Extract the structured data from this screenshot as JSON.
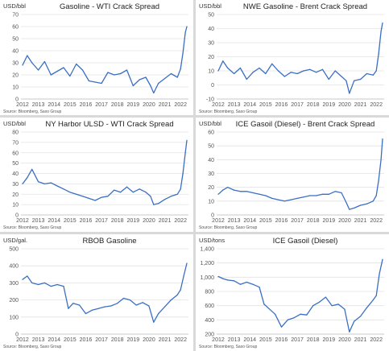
{
  "source_text": "Source: Bloomberg, Saxo Group",
  "colors": {
    "line": "#3a6fc4",
    "grid": "#e2e2e2",
    "axis": "#bfbfbf",
    "text": "#333333",
    "tick": "#555555"
  },
  "chart_data": [
    {
      "type": "line",
      "title": "Gasoline - WTI Crack Spread",
      "ylabel": "USD/bbl",
      "ylim": [
        0,
        70
      ],
      "yticks": [
        0,
        10,
        20,
        30,
        40,
        50,
        60,
        70
      ],
      "ytick_labels": [
        "0",
        "10",
        "20",
        "30",
        "40",
        "50",
        "60",
        "70"
      ],
      "xlim": [
        2011.9,
        2022.5
      ],
      "xticks": [
        2012,
        2013,
        2014,
        2015,
        2016,
        2017,
        2018,
        2019,
        2020,
        2021,
        2022
      ],
      "source": "Source: Bloomberg, Saxo Group",
      "series": [
        {
          "x": [
            2012.0,
            2012.3,
            2012.6,
            2013.0,
            2013.4,
            2013.8,
            2014.2,
            2014.6,
            2015.0,
            2015.4,
            2015.8,
            2016.2,
            2016.6,
            2017.0,
            2017.4,
            2017.8,
            2018.2,
            2018.6,
            2019.0,
            2019.4,
            2019.8,
            2020.1,
            2020.3,
            2020.6,
            2021.0,
            2021.4,
            2021.8,
            2022.0,
            2022.15,
            2022.3,
            2022.4
          ],
          "y": [
            28,
            36,
            30,
            24,
            31,
            20,
            23,
            26,
            19,
            29,
            24,
            15,
            14,
            13,
            22,
            20,
            21,
            24,
            11,
            16,
            18,
            11,
            5,
            13,
            17,
            21,
            18,
            25,
            38,
            55,
            60
          ]
        }
      ]
    },
    {
      "type": "line",
      "title": "NWE Gasoline - Brent Crack Spread",
      "ylabel": "USD/bbl",
      "ylim": [
        -10,
        50
      ],
      "yticks": [
        -10,
        0,
        10,
        20,
        30,
        40,
        50
      ],
      "ytick_labels": [
        "-10",
        "0",
        "10",
        "20",
        "30",
        "40",
        "50"
      ],
      "xlim": [
        2011.9,
        2022.5
      ],
      "xticks": [
        2012,
        2013,
        2014,
        2015,
        2016,
        2017,
        2018,
        2019,
        2020,
        2021,
        2022
      ],
      "source": "Source: Bloomberg, Saxo Group",
      "series": [
        {
          "x": [
            2012.0,
            2012.3,
            2012.6,
            2013.0,
            2013.4,
            2013.8,
            2014.2,
            2014.6,
            2015.0,
            2015.4,
            2015.8,
            2016.2,
            2016.6,
            2017.0,
            2017.4,
            2017.8,
            2018.2,
            2018.6,
            2019.0,
            2019.4,
            2019.8,
            2020.1,
            2020.3,
            2020.6,
            2021.0,
            2021.4,
            2021.8,
            2022.0,
            2022.15,
            2022.3,
            2022.4
          ],
          "y": [
            10,
            17,
            12,
            8,
            12,
            4,
            9,
            12,
            8,
            15,
            10,
            6,
            9,
            8,
            10,
            11,
            9,
            11,
            4,
            10,
            6,
            3,
            -6,
            3,
            4,
            8,
            7,
            10,
            22,
            38,
            44
          ]
        }
      ]
    },
    {
      "type": "line",
      "title": "NY Harbor ULSD - WTI Crack Spread",
      "ylabel": "USD/bbl",
      "ylim": [
        0,
        80
      ],
      "yticks": [
        0,
        10,
        20,
        30,
        40,
        50,
        60,
        70,
        80
      ],
      "ytick_labels": [
        "0",
        "10",
        "20",
        "30",
        "40",
        "50",
        "60",
        "70",
        "80"
      ],
      "xlim": [
        2011.9,
        2022.5
      ],
      "xticks": [
        2012,
        2013,
        2014,
        2015,
        2016,
        2017,
        2018,
        2019,
        2020,
        2021,
        2022
      ],
      "source": "Source: Bloomberg, Saxo Group",
      "series": [
        {
          "x": [
            2012.0,
            2012.3,
            2012.6,
            2013.0,
            2013.4,
            2013.8,
            2014.2,
            2014.6,
            2015.0,
            2015.4,
            2015.8,
            2016.2,
            2016.6,
            2017.0,
            2017.4,
            2017.8,
            2018.2,
            2018.6,
            2019.0,
            2019.4,
            2019.8,
            2020.1,
            2020.3,
            2020.6,
            2021.0,
            2021.4,
            2021.8,
            2022.0,
            2022.15,
            2022.3,
            2022.4
          ],
          "y": [
            30,
            36,
            44,
            32,
            30,
            31,
            28,
            25,
            22,
            20,
            18,
            16,
            14,
            17,
            18,
            24,
            22,
            27,
            22,
            25,
            22,
            18,
            10,
            11,
            15,
            18,
            20,
            25,
            40,
            60,
            72
          ]
        }
      ]
    },
    {
      "type": "line",
      "title": "ICE Gasoil (Diesel) - Brent Crack Spread",
      "ylabel": "USD/bbl",
      "ylim": [
        0,
        60
      ],
      "yticks": [
        0,
        10,
        20,
        30,
        40,
        50,
        60
      ],
      "ytick_labels": [
        "0",
        "10",
        "20",
        "30",
        "40",
        "50",
        "60"
      ],
      "xlim": [
        2011.9,
        2022.5
      ],
      "xticks": [
        2012,
        2013,
        2014,
        2015,
        2016,
        2017,
        2018,
        2019,
        2020,
        2021,
        2022
      ],
      "source": "Source: Bloomberg, Saxo Group",
      "series": [
        {
          "x": [
            2012.0,
            2012.3,
            2012.6,
            2013.0,
            2013.4,
            2013.8,
            2014.2,
            2014.6,
            2015.0,
            2015.4,
            2015.8,
            2016.2,
            2016.6,
            2017.0,
            2017.4,
            2017.8,
            2018.2,
            2018.6,
            2019.0,
            2019.4,
            2019.8,
            2020.1,
            2020.3,
            2020.6,
            2021.0,
            2021.4,
            2021.8,
            2022.0,
            2022.15,
            2022.3,
            2022.4
          ],
          "y": [
            15,
            18,
            20,
            18,
            17,
            17,
            16,
            15,
            14,
            12,
            11,
            10,
            11,
            12,
            13,
            14,
            14,
            15,
            15,
            17,
            16,
            9,
            4,
            5,
            7,
            8,
            10,
            14,
            25,
            40,
            55
          ]
        }
      ]
    },
    {
      "type": "line",
      "title": "RBOB Gasoline",
      "ylabel": "USD/gal.",
      "ylim": [
        0,
        500
      ],
      "yticks": [
        0,
        100,
        200,
        300,
        400,
        500
      ],
      "ytick_labels": [
        "0",
        "100",
        "200",
        "300",
        "400",
        "500"
      ],
      "xlim": [
        2011.9,
        2022.5
      ],
      "xticks": [
        2012,
        2013,
        2014,
        2015,
        2016,
        2017,
        2018,
        2019,
        2020,
        2021,
        2022
      ],
      "source": "Source: Bloomberg, Saxo Group",
      "series": [
        {
          "x": [
            2012.0,
            2012.3,
            2012.6,
            2013.0,
            2013.4,
            2013.8,
            2014.2,
            2014.6,
            2014.9,
            2015.2,
            2015.6,
            2016.0,
            2016.4,
            2016.8,
            2017.2,
            2017.6,
            2018.0,
            2018.4,
            2018.8,
            2019.2,
            2019.6,
            2020.0,
            2020.3,
            2020.6,
            2021.0,
            2021.4,
            2021.8,
            2022.0,
            2022.2,
            2022.4
          ],
          "y": [
            320,
            340,
            300,
            290,
            300,
            280,
            290,
            280,
            150,
            180,
            170,
            120,
            140,
            150,
            160,
            165,
            180,
            210,
            200,
            170,
            185,
            165,
            70,
            120,
            160,
            200,
            230,
            260,
            340,
            415
          ]
        }
      ]
    },
    {
      "type": "line",
      "title": "ICE Gasoil (Diesel)",
      "ylabel": "USD/tons",
      "ylim": [
        200,
        1400
      ],
      "yticks": [
        200,
        400,
        600,
        800,
        1000,
        1200,
        1400
      ],
      "ytick_labels": [
        "200",
        "400",
        "600",
        "800",
        "1,000",
        "1,200",
        "1,400"
      ],
      "xlim": [
        2011.9,
        2022.5
      ],
      "xticks": [
        2012,
        2013,
        2014,
        2015,
        2016,
        2017,
        2018,
        2019,
        2020,
        2021,
        2022
      ],
      "source": "Source: Bloomberg, Saxo Group",
      "series": [
        {
          "x": [
            2012.0,
            2012.3,
            2012.6,
            2013.0,
            2013.4,
            2013.8,
            2014.2,
            2014.6,
            2014.9,
            2015.2,
            2015.6,
            2016.0,
            2016.4,
            2016.8,
            2017.2,
            2017.6,
            2018.0,
            2018.4,
            2018.8,
            2019.2,
            2019.6,
            2020.0,
            2020.3,
            2020.6,
            2021.0,
            2021.4,
            2021.8,
            2022.0,
            2022.2,
            2022.4
          ],
          "y": [
            1010,
            980,
            960,
            950,
            900,
            930,
            900,
            860,
            620,
            560,
            480,
            300,
            400,
            430,
            480,
            470,
            600,
            650,
            720,
            600,
            620,
            550,
            230,
            380,
            450,
            570,
            680,
            740,
            1050,
            1250
          ]
        }
      ]
    }
  ]
}
